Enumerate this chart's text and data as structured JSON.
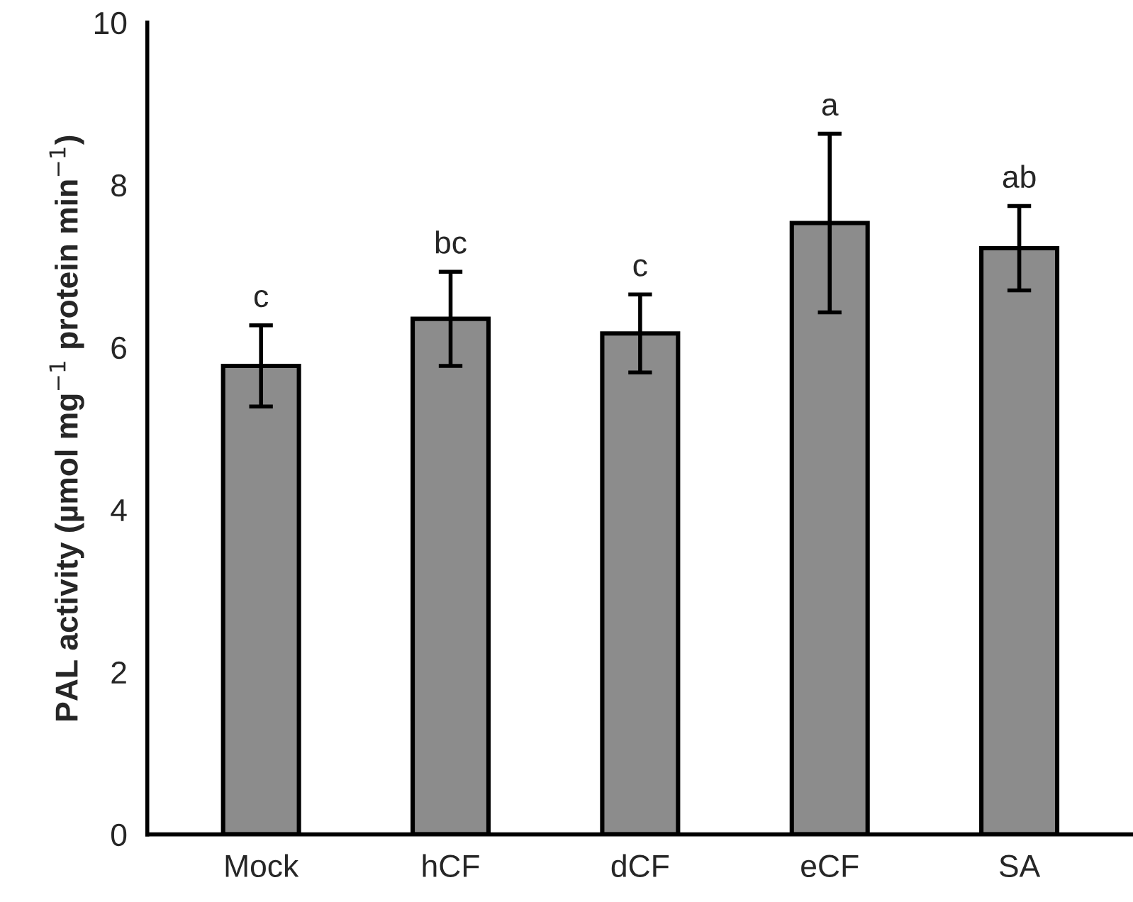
{
  "chart_data": {
    "type": "bar",
    "ylabel": "PAL activity (µmol mg$^{−1}$ protein min$^{−1}$)",
    "categories": [
      "Mock",
      "hCF",
      "dCF",
      "eCF",
      "SA"
    ],
    "values": [
      5.77,
      6.35,
      6.17,
      7.53,
      7.22
    ],
    "errors": [
      0.5,
      0.58,
      0.48,
      1.1,
      0.52
    ],
    "color": "#8c8c8c",
    "annotations": [
      {
        "text": "c",
        "x": "Mock",
        "y": 6.27
      },
      {
        "text": "bc",
        "x": "hCF",
        "y": 6.93
      },
      {
        "text": "c",
        "x": "dCF",
        "y": 6.65
      },
      {
        "text": "a",
        "x": "eCF",
        "y": 8.63
      },
      {
        "text": "ab",
        "x": "SA",
        "y": 7.74
      }
    ],
    "ylim": [
      0,
      10
    ],
    "yticks": [
      0,
      2,
      4,
      6,
      8,
      10
    ],
    "grid": false
  }
}
